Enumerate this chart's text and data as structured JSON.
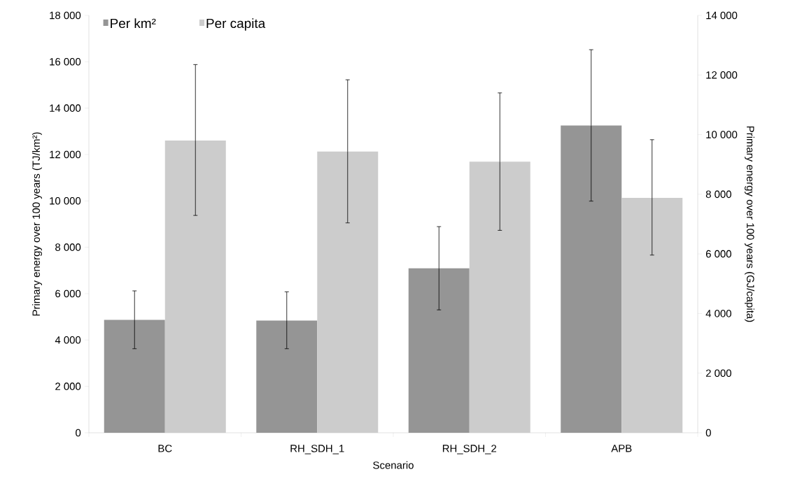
{
  "chart_data": {
    "type": "bar",
    "xlabel": "Scenario",
    "ylabel": "Primary energy over 100 years (TJ/km²)",
    "y2label": "Primary energy over 100 years (GJ/capita)",
    "categories": [
      "BC",
      "RH_SDH_1",
      "RH_SDH_2",
      "APB"
    ],
    "series": [
      {
        "name": "Per km²",
        "color": "#959595",
        "values": [
          4870,
          4840,
          7090,
          13250
        ],
        "errors": [
          [
            3625,
            6120
          ],
          [
            3625,
            6080
          ],
          [
            5300,
            8890
          ],
          [
            9990,
            16520
          ]
        ]
      },
      {
        "name": "Per capita",
        "color": "#cccccc",
        "axis": "y2",
        "values": [
          9800,
          9430,
          9090,
          7880
        ],
        "errors": [
          [
            7290,
            12350
          ],
          [
            7040,
            11840
          ],
          [
            6790,
            11400
          ],
          [
            5960,
            9830
          ]
        ]
      }
    ],
    "ylim": [
      0,
      18000
    ],
    "yticks": [
      {
        "value": 0,
        "label": "0"
      },
      {
        "value": 2000,
        "label": "2 000"
      },
      {
        "value": 4000,
        "label": "4 000"
      },
      {
        "value": 6000,
        "label": "6 000"
      },
      {
        "value": 8000,
        "label": "8 000"
      },
      {
        "value": 10000,
        "label": "10 000"
      },
      {
        "value": 12000,
        "label": "12 000"
      },
      {
        "value": 14000,
        "label": "14 000"
      },
      {
        "value": 16000,
        "label": "16 000"
      },
      {
        "value": 18000,
        "label": "18 000"
      }
    ],
    "y2lim": [
      0,
      14000
    ],
    "y2ticks": [
      {
        "value": 0,
        "label": "0"
      },
      {
        "value": 2000,
        "label": "2 000"
      },
      {
        "value": 4000,
        "label": "4 000"
      },
      {
        "value": 6000,
        "label": "6 000"
      },
      {
        "value": 8000,
        "label": "8 000"
      },
      {
        "value": 10000,
        "label": "10 000"
      },
      {
        "value": 12000,
        "label": "12 000"
      },
      {
        "value": 14000,
        "label": "14 000"
      }
    ],
    "grid": false,
    "legend": "top left"
  }
}
